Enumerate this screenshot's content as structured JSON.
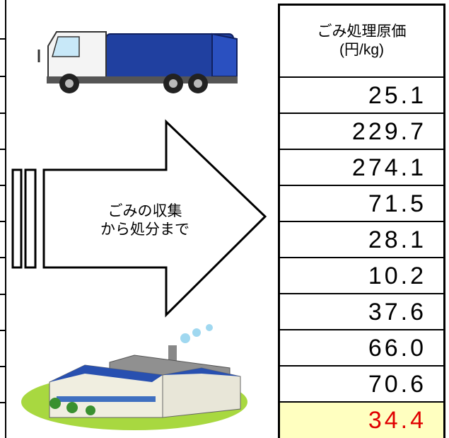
{
  "arrow_label": [
    "ごみの収集",
    "から処分まで"
  ],
  "table": {
    "header": [
      "ごみ処理原価",
      "(円/kg)"
    ],
    "rows": [
      "25.1",
      "229.7",
      "274.1",
      "71.5",
      "28.1",
      "10.2",
      "37.6",
      "66.0",
      "70.6"
    ],
    "total": "34.4"
  }
}
